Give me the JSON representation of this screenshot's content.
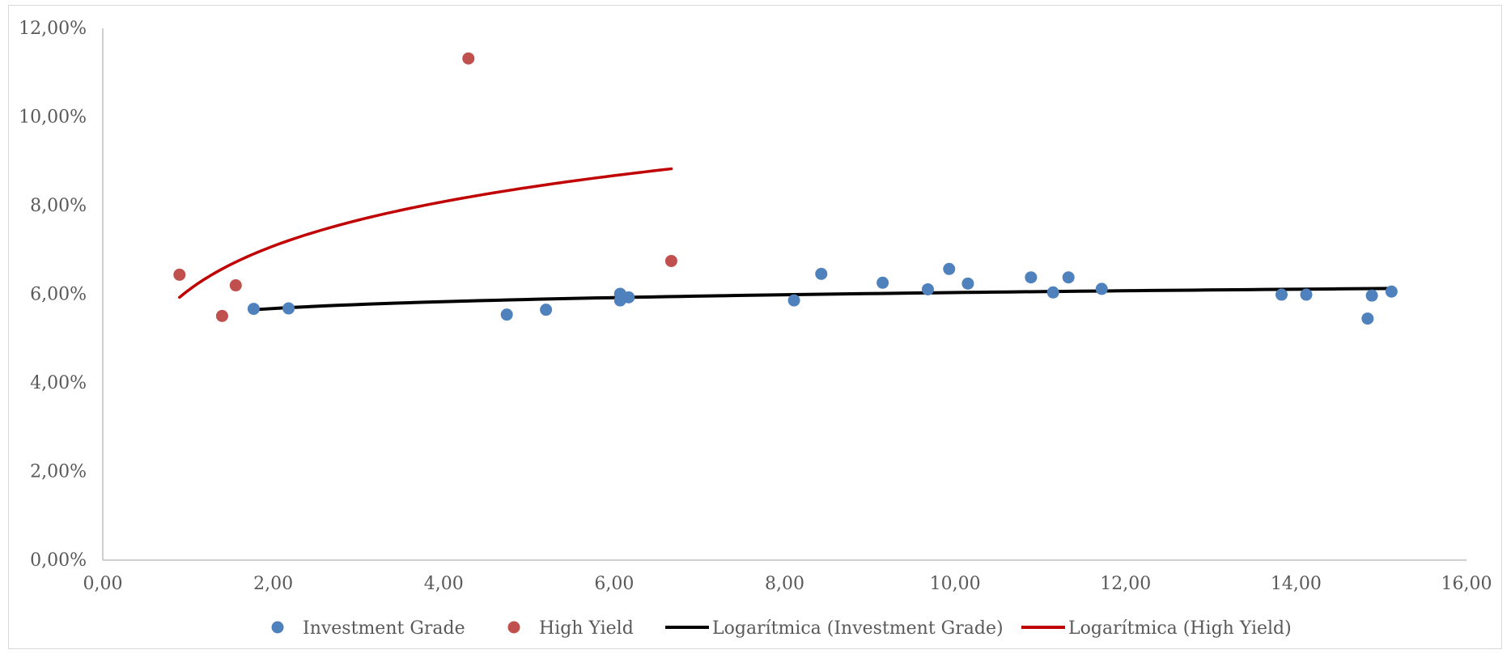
{
  "chart_data": {
    "type": "scatter",
    "title": "",
    "xlabel": "",
    "ylabel": "",
    "xlim": [
      0,
      16
    ],
    "ylim": [
      0,
      12
    ],
    "x_ticks": [
      0,
      2,
      4,
      6,
      8,
      10,
      12,
      14,
      16
    ],
    "y_ticks": [
      0,
      2,
      4,
      6,
      8,
      10,
      12
    ],
    "x_tick_labels": [
      "0,00",
      "2,00",
      "4,00",
      "6,00",
      "8,00",
      "10,00",
      "12,00",
      "14,00",
      "16,00"
    ],
    "y_tick_labels": [
      "0,00%",
      "2,00%",
      "4,00%",
      "6,00%",
      "8,00%",
      "10,00%",
      "12,00%"
    ],
    "grid": false,
    "legend_position": "bottom",
    "series": [
      {
        "name": "Investment Grade",
        "color": "#4f81bd",
        "marker": "circle",
        "points": [
          [
            1.77,
            5.67
          ],
          [
            2.18,
            5.68
          ],
          [
            4.74,
            5.54
          ],
          [
            5.2,
            5.65
          ],
          [
            6.07,
            6.01
          ],
          [
            6.07,
            5.86
          ],
          [
            6.17,
            5.93
          ],
          [
            8.11,
            5.86
          ],
          [
            8.43,
            6.46
          ],
          [
            9.15,
            6.26
          ],
          [
            9.68,
            6.11
          ],
          [
            9.93,
            6.57
          ],
          [
            10.15,
            6.24
          ],
          [
            10.89,
            6.38
          ],
          [
            11.15,
            6.04
          ],
          [
            11.33,
            6.38
          ],
          [
            11.72,
            6.12
          ],
          [
            13.83,
            5.99
          ],
          [
            14.12,
            5.99
          ],
          [
            14.84,
            5.45
          ],
          [
            14.89,
            5.97
          ],
          [
            15.12,
            6.06
          ]
        ]
      },
      {
        "name": "High Yield",
        "color": "#c0504d",
        "marker": "circle",
        "points": [
          [
            0.9,
            6.44
          ],
          [
            1.4,
            5.51
          ],
          [
            1.56,
            6.2
          ],
          [
            4.29,
            11.32
          ],
          [
            6.67,
            6.75
          ]
        ]
      }
    ],
    "trendlines": [
      {
        "name": "Logarítmica (Investment Grade)",
        "type": "logarithmic",
        "color": "#000000",
        "x_range": [
          1.77,
          15.12
        ],
        "y_range": [
          5.65,
          6.13
        ]
      },
      {
        "name": "Logarítmica (High Yield)",
        "type": "logarithmic",
        "color": "#c00000",
        "x_range": [
          0.9,
          6.67
        ],
        "y_range": [
          5.93,
          8.83
        ]
      }
    ],
    "legend": [
      {
        "label": "Investment Grade",
        "kind": "marker",
        "color": "#4f81bd"
      },
      {
        "label": "High Yield",
        "kind": "marker",
        "color": "#c0504d"
      },
      {
        "label": "Logarítmica (Investment Grade)",
        "kind": "line",
        "color": "#000000"
      },
      {
        "label": "Logarítmica (High Yield)",
        "kind": "line",
        "color": "#c00000"
      }
    ]
  }
}
